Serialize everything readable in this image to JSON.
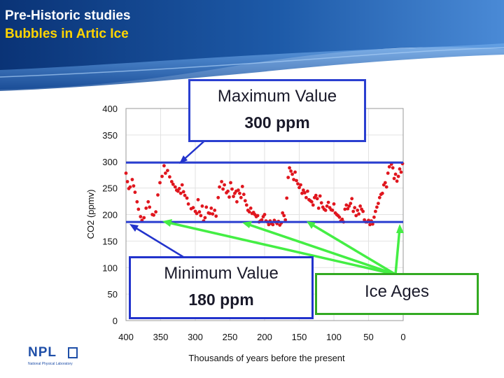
{
  "slide": {
    "title_line1": "Pre-Historic studies",
    "title_line2": "Bubbles in Artic Ice",
    "colors": {
      "header_dark": "#0b3c82",
      "header_light": "#3e7dd0",
      "title2": "#ffd400",
      "accent_blue": "#2233cc",
      "accent_green": "#44ee44",
      "data_red": "#e0161e"
    }
  },
  "callouts": {
    "max_label": "Maximum Value",
    "max_value": "300 ppm",
    "min_label": "Minimum Value",
    "min_value": "180 ppm",
    "ice_label": "Ice Ages"
  },
  "logo": {
    "name": "NPL",
    "subtitle": "National Physical Laboratory"
  },
  "chart_data": {
    "type": "scatter",
    "title": "",
    "xlabel": "Thousands of years before the present",
    "ylabel": "CO2 (ppmv)",
    "xlim": [
      400,
      0
    ],
    "ylim": [
      0,
      400
    ],
    "xticks": [
      400,
      350,
      300,
      250,
      200,
      150,
      100,
      50,
      0
    ],
    "yticks": [
      0,
      50,
      100,
      150,
      200,
      250,
      300,
      350,
      400
    ],
    "grid": true,
    "reference_lines": [
      {
        "name": "maximum",
        "y": 298
      },
      {
        "name": "minimum",
        "y": 186
      }
    ],
    "series": [
      {
        "name": "CO2",
        "x": [
          400,
          398,
          396,
          394,
          391,
          389,
          387,
          384,
          382,
          379,
          377,
          374,
          371,
          368,
          366,
          362,
          360,
          357,
          354,
          351,
          348,
          345,
          343,
          340,
          337,
          334,
          332,
          329,
          327,
          325,
          323,
          321,
          319,
          317,
          315,
          312,
          310,
          306,
          303,
          300,
          298,
          296,
          294,
          292,
          290,
          288,
          286,
          284,
          281,
          279,
          277,
          275,
          272,
          270,
          267,
          265,
          262,
          260,
          258,
          255,
          253,
          251,
          249,
          247,
          245,
          243,
          241,
          240,
          238,
          236,
          234,
          232,
          230,
          228,
          226,
          224,
          222,
          220,
          218,
          216,
          214,
          212,
          210,
          208,
          206,
          204,
          202,
          200,
          198,
          196,
          194,
          192,
          190,
          188,
          186,
          184,
          182,
          180,
          178,
          176,
          174,
          172,
          170,
          168,
          166,
          164,
          162,
          160,
          158,
          156,
          154,
          152,
          150,
          148,
          146,
          144,
          142,
          140,
          138,
          136,
          134,
          132,
          130,
          128,
          126,
          124,
          122,
          120,
          118,
          116,
          114,
          112,
          110,
          108,
          106,
          104,
          102,
          100,
          98,
          96,
          94,
          92,
          90,
          88,
          86,
          84,
          82,
          80,
          78,
          76,
          74,
          72,
          70,
          68,
          66,
          64,
          62,
          60,
          58,
          56,
          54,
          52,
          50,
          48,
          46,
          44,
          42,
          40,
          38,
          36,
          34,
          32,
          30,
          28,
          26,
          24,
          22,
          20,
          17,
          15,
          13,
          11,
          9,
          7,
          5,
          3,
          1
        ],
        "values": [
          278,
          262,
          249,
          252,
          266,
          254,
          242,
          224,
          210,
          196,
          189,
          194,
          212,
          224,
          214,
          200,
          199,
          205,
          237,
          260,
          272,
          292,
          278,
          283,
          271,
          262,
          257,
          252,
          246,
          244,
          249,
          240,
          256,
          243,
          236,
          231,
          220,
          211,
          213,
          206,
          202,
          228,
          205,
          198,
          216,
          188,
          194,
          214,
          203,
          202,
          212,
          201,
          208,
          197,
          232,
          252,
          262,
          248,
          256,
          241,
          244,
          233,
          260,
          248,
          234,
          240,
          244,
          224,
          246,
          240,
          232,
          253,
          238,
          226,
          218,
          208,
          205,
          212,
          202,
          204,
          200,
          196,
          198,
          186,
          188,
          190,
          196,
          200,
          188,
          186,
          181,
          188,
          183,
          181,
          189,
          186,
          183,
          187,
          180,
          184,
          203,
          198,
          190,
          231,
          270,
          288,
          282,
          276,
          266,
          280,
          264,
          258,
          251,
          256,
          240,
          246,
          241,
          232,
          244,
          228,
          226,
          224,
          218,
          232,
          236,
          230,
          212,
          235,
          222,
          214,
          210,
          208,
          216,
          223,
          213,
          209,
          208,
          220,
          203,
          200,
          198,
          195,
          188,
          191,
          186,
          210,
          218,
          211,
          216,
          221,
          230,
          206,
          213,
          198,
          208,
          201,
          216,
          210,
          206,
          190,
          186,
          186,
          189,
          181,
          188,
          182,
          195,
          206,
          214,
          221,
          232,
          238,
          240,
          256,
          260,
          252,
          278,
          290,
          295,
          288,
          268,
          276,
          263,
          272,
          286,
          280,
          296
        ]
      }
    ]
  }
}
